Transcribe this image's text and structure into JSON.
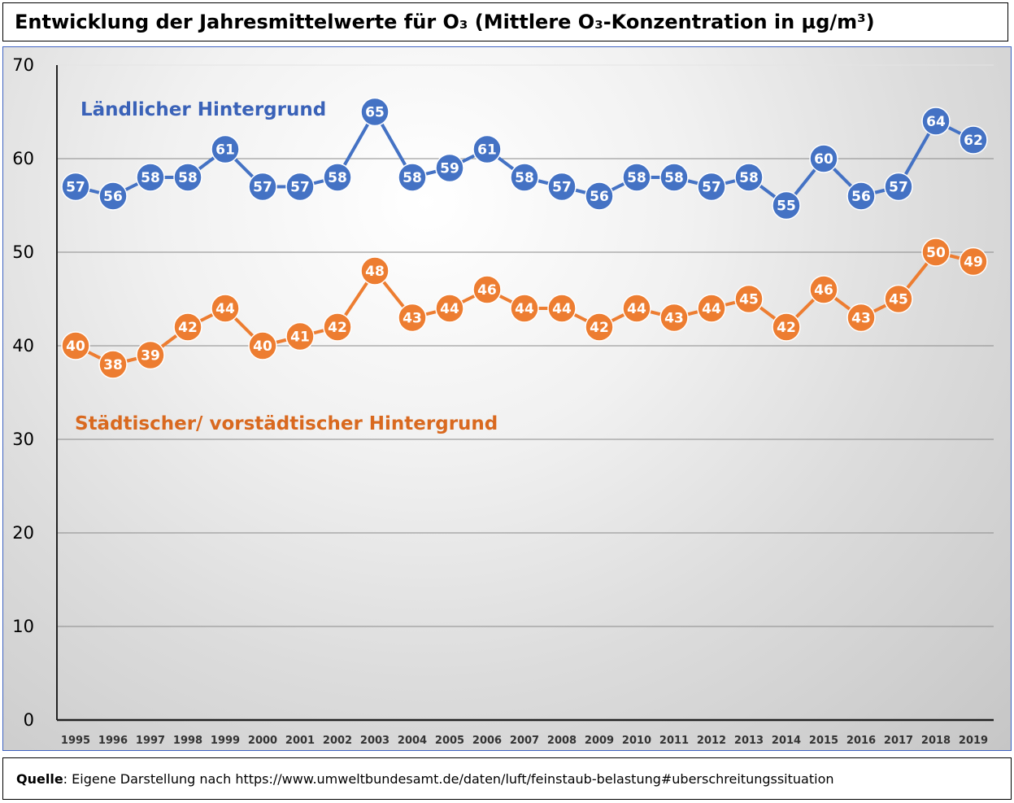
{
  "chart_data": {
    "type": "line",
    "title": "Entwicklung der Jahresmittelwerte für O₃ (Mittlere O₃-Konzentration in µg/m³)",
    "xlabel": "",
    "ylabel": "",
    "ylim": [
      0,
      70
    ],
    "yticks": [
      0,
      10,
      20,
      30,
      40,
      50,
      60,
      70
    ],
    "categories": [
      "1995",
      "1996",
      "1997",
      "1998",
      "1999",
      "2000",
      "2001",
      "2002",
      "2003",
      "2004",
      "2005",
      "2006",
      "2007",
      "2008",
      "2009",
      "2010",
      "2011",
      "2012",
      "2013",
      "2014",
      "2015",
      "2016",
      "2017",
      "2018",
      "2019"
    ],
    "series": [
      {
        "name": "Ländlicher Hintergrund",
        "color": "#4472c4",
        "values": [
          57,
          56,
          58,
          58,
          61,
          57,
          57,
          58,
          65,
          58,
          59,
          61,
          58,
          57,
          56,
          58,
          58,
          57,
          58,
          55,
          60,
          56,
          57,
          64,
          62
        ]
      },
      {
        "name": "Städtischer/ vorstädtischer Hintergrund",
        "color": "#ed7d31",
        "values": [
          40,
          38,
          39,
          42,
          44,
          40,
          41,
          42,
          48,
          43,
          44,
          46,
          44,
          44,
          42,
          44,
          43,
          44,
          45,
          42,
          46,
          43,
          45,
          50,
          49
        ]
      }
    ],
    "grid": true
  },
  "source": {
    "label": "Quelle",
    "text": ": Eigene Darstellung nach https://www.umweltbundesamt.de/daten/luft/feinstaub-belastung#uberschreitungssituation"
  }
}
